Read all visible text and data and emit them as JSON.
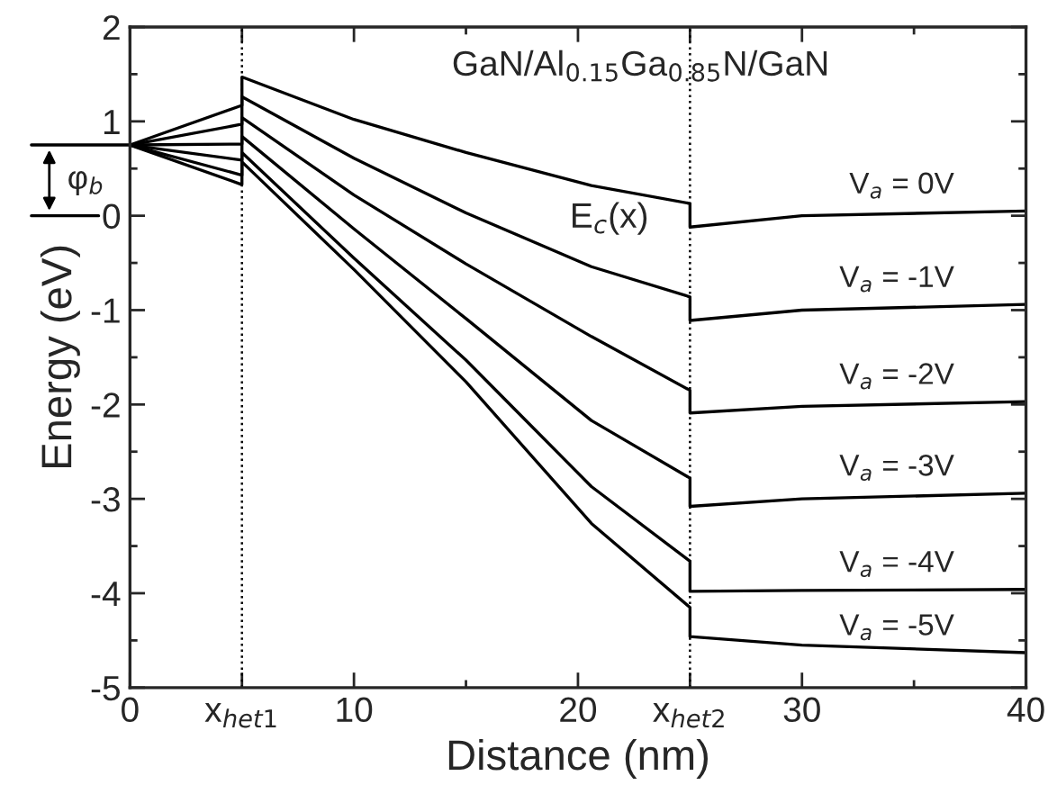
{
  "chart_data": {
    "type": "line",
    "xlabel": "Distance (nm)",
    "ylabel": "Energy (eV)",
    "annotations": [
      "GaN/Al$_{0.15}$Ga$_{0.85}$N/GaN",
      "E$_{c}$(x)",
      "φ$_{b}$"
    ],
    "series": [
      {
        "name": "V$_{a}$ = 0V",
        "color": "#000000",
        "x": [
          0,
          5,
          5,
          10,
          15,
          20.6,
          25,
          25,
          30,
          40
        ],
        "values": [
          0.75,
          1.17,
          1.47,
          1.02,
          0.67,
          0.32,
          0.13,
          -0.12,
          0.0,
          0.05
        ]
      },
      {
        "name": "V$_{a}$ = -1V",
        "color": "#000000",
        "x": [
          0,
          5,
          5,
          10,
          15,
          20.6,
          25,
          25,
          30,
          40
        ],
        "values": [
          0.75,
          0.97,
          1.26,
          0.61,
          0.03,
          -0.54,
          -0.86,
          -1.11,
          -1.0,
          -0.94
        ]
      },
      {
        "name": "V$_{a}$ = -2V",
        "color": "#000000",
        "x": [
          0,
          5,
          5,
          10,
          15,
          20.6,
          25,
          25,
          30,
          40
        ],
        "values": [
          0.75,
          0.76,
          1.04,
          0.22,
          -0.51,
          -1.28,
          -1.85,
          -2.09,
          -2.02,
          -1.97
        ]
      },
      {
        "name": "V$_{a}$ = -3V",
        "color": "#000000",
        "x": [
          0,
          5,
          5,
          10,
          15,
          20.6,
          25,
          25,
          30,
          40
        ],
        "values": [
          0.75,
          0.59,
          0.84,
          -0.14,
          -1.09,
          -2.17,
          -2.78,
          -3.08,
          -3.0,
          -2.94
        ]
      },
      {
        "name": "V$_{a}$ = -4V",
        "color": "#000000",
        "x": [
          0,
          5,
          5,
          10,
          15,
          20.6,
          25,
          25,
          30,
          40
        ],
        "values": [
          0.75,
          0.43,
          0.67,
          -0.45,
          -1.53,
          -2.87,
          -3.66,
          -3.98,
          -3.97,
          -3.96
        ]
      },
      {
        "name": "V$_{a}$ = -5V",
        "color": "#000000",
        "x": [
          0,
          5,
          5,
          10,
          15,
          20.6,
          25,
          25,
          30,
          40
        ],
        "values": [
          0.75,
          0.33,
          0.57,
          -0.57,
          -1.76,
          -3.26,
          -4.15,
          -4.46,
          -4.55,
          -4.63
        ]
      }
    ],
    "xlim": [
      0,
      40
    ],
    "ylim": [
      -5,
      2
    ],
    "xticks": [
      0,
      {
        "value": 5,
        "label": "x$_{het1}$"
      },
      10,
      {
        "value": 15,
        "label": null
      },
      20,
      {
        "value": 25,
        "label": "x$_{het2}$"
      },
      30,
      {
        "value": 35,
        "label": null
      },
      40
    ],
    "yticks": [
      -5,
      {
        "value": -4.5,
        "label": null
      },
      -4,
      {
        "value": -3.5,
        "label": null
      },
      -3,
      {
        "value": -2.5,
        "label": null
      },
      -2,
      {
        "value": -1.5,
        "label": null
      },
      -1,
      {
        "value": -0.5,
        "label": null
      },
      0,
      {
        "value": 0.5,
        "label": null
      },
      1,
      {
        "value": 1.5,
        "label": null
      },
      2
    ],
    "ref_lines": [
      {
        "axis": "x",
        "value": 5,
        "line_style": "dotted",
        "color": "#000000"
      },
      {
        "axis": "x",
        "value": 25,
        "line_style": "dotted",
        "color": "#000000"
      }
    ],
    "grid": false,
    "legend": false,
    "marker": "none",
    "line_style": "solid"
  }
}
